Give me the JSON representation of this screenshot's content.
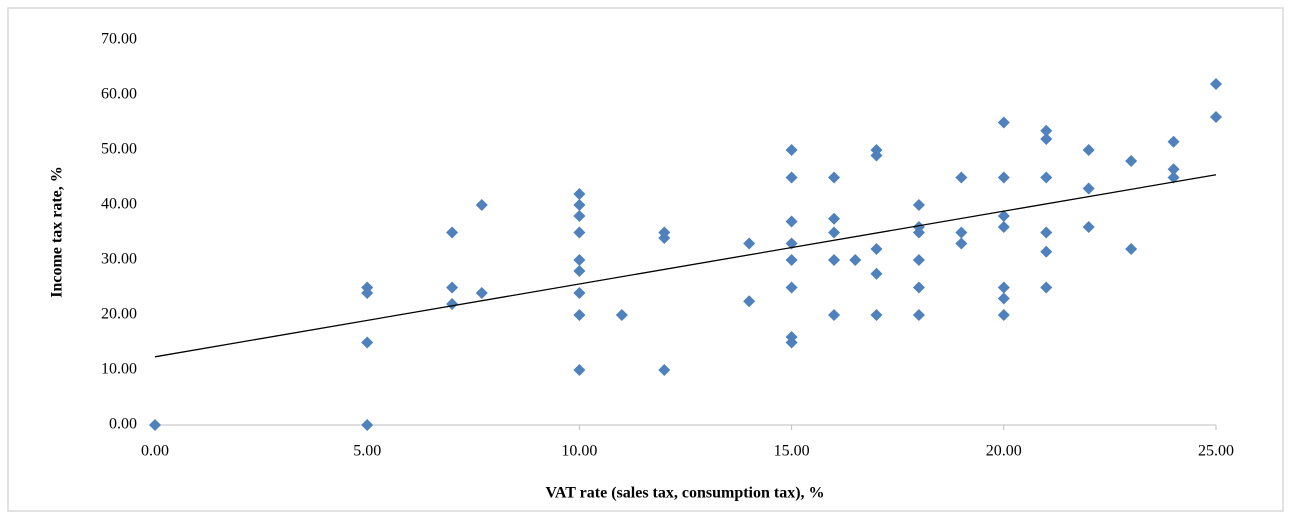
{
  "chart_data": {
    "type": "scatter",
    "x_label": "VAT rate (sales tax, consumption tax), %",
    "y_label": "Income tax rate, %",
    "x": [
      0,
      5,
      5,
      5,
      5,
      7,
      7,
      7,
      7.7,
      7.7,
      10,
      10,
      10,
      10,
      10,
      10,
      10,
      10,
      10,
      11,
      12,
      12,
      12,
      14,
      14,
      15,
      15,
      15,
      15,
      15,
      15,
      15,
      15,
      16,
      16,
      16,
      16,
      16,
      16.5,
      17,
      17,
      17,
      17,
      17,
      18,
      18,
      18,
      18,
      18,
      18,
      19,
      19,
      19,
      20,
      20,
      20,
      20,
      20,
      20,
      20,
      21,
      21,
      21,
      21,
      21,
      21,
      22,
      22,
      22,
      23,
      23,
      24,
      24,
      24,
      25,
      25
    ],
    "values": [
      0,
      25,
      24,
      15,
      0,
      35,
      25,
      22,
      40,
      24,
      42,
      40,
      38,
      35,
      30,
      28,
      24,
      20,
      10,
      20,
      35,
      34,
      10,
      33,
      22.5,
      50,
      45,
      37,
      33,
      30,
      25,
      16,
      15,
      45,
      37.5,
      35,
      30,
      20,
      30,
      50,
      49,
      32,
      27.5,
      20,
      40,
      36,
      35,
      30,
      25,
      20,
      45,
      35,
      33,
      55,
      45,
      38,
      36,
      25,
      23,
      20,
      53.5,
      52,
      45,
      35,
      31.5,
      25,
      50,
      43,
      36,
      48,
      32,
      51.5,
      46.5,
      45,
      62,
      56
    ],
    "color": "#4f81bd",
    "trendline": {
      "x": [
        0,
        25
      ],
      "values": [
        12.4,
        45.5
      ],
      "color": "#000000"
    },
    "xlim": [
      0,
      25
    ],
    "ylim": [
      0,
      70
    ],
    "xticks": [
      {
        "value": 0,
        "label": "0.00"
      },
      {
        "value": 5,
        "label": "5.00"
      },
      {
        "value": 10,
        "label": "10.00"
      },
      {
        "value": 15,
        "label": "15.00"
      },
      {
        "value": 20,
        "label": "20.00"
      },
      {
        "value": 25,
        "label": "25.00"
      }
    ],
    "yticks": [
      {
        "value": 0,
        "label": "0.00"
      },
      {
        "value": 10,
        "label": "10.00"
      },
      {
        "value": 20,
        "label": "20.00"
      },
      {
        "value": 30,
        "label": "30.00"
      },
      {
        "value": 40,
        "label": "40.00"
      },
      {
        "value": 50,
        "label": "50.00"
      },
      {
        "value": 60,
        "label": "60.00"
      },
      {
        "value": 70,
        "label": "70.00"
      }
    ],
    "grid": false
  }
}
